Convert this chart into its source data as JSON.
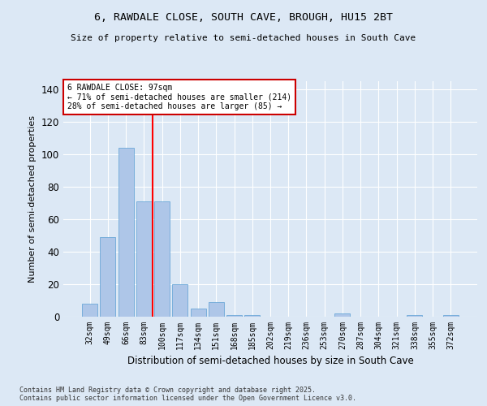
{
  "title": "6, RAWDALE CLOSE, SOUTH CAVE, BROUGH, HU15 2BT",
  "subtitle": "Size of property relative to semi-detached houses in South Cave",
  "xlabel": "Distribution of semi-detached houses by size in South Cave",
  "ylabel": "Number of semi-detached properties",
  "categories": [
    "32sqm",
    "49sqm",
    "66sqm",
    "83sqm",
    "100sqm",
    "117sqm",
    "134sqm",
    "151sqm",
    "168sqm",
    "185sqm",
    "202sqm",
    "219sqm",
    "236sqm",
    "253sqm",
    "270sqm",
    "287sqm",
    "304sqm",
    "321sqm",
    "338sqm",
    "355sqm",
    "372sqm"
  ],
  "values": [
    8,
    49,
    104,
    71,
    71,
    20,
    5,
    9,
    1,
    1,
    0,
    0,
    0,
    0,
    2,
    0,
    0,
    0,
    1,
    0,
    1
  ],
  "bar_color": "#aec6e8",
  "bar_edge_color": "#5a9fd4",
  "highlight_line_index": 4,
  "annotation_title": "6 RAWDALE CLOSE: 97sqm",
  "annotation_line1": "← 71% of semi-detached houses are smaller (214)",
  "annotation_line2": "28% of semi-detached houses are larger (85) →",
  "annotation_box_color": "#ffffff",
  "annotation_box_edge": "#cc0000",
  "ylim": [
    0,
    145
  ],
  "yticks": [
    0,
    20,
    40,
    60,
    80,
    100,
    120,
    140
  ],
  "bg_color": "#dce8f5",
  "grid_color": "#ffffff",
  "footer_line1": "Contains HM Land Registry data © Crown copyright and database right 2025.",
  "footer_line2": "Contains public sector information licensed under the Open Government Licence v3.0."
}
